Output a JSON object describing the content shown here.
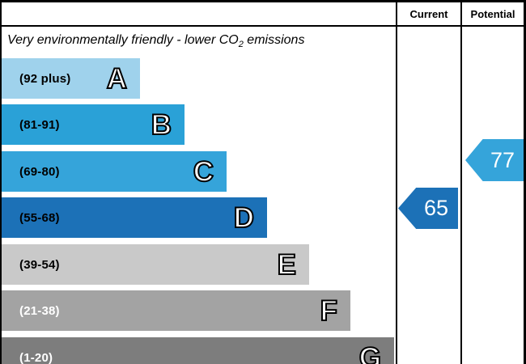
{
  "header": {
    "current_label": "Current",
    "potential_label": "Potential"
  },
  "title": {
    "prefix": "Very environmentally friendly - lower CO",
    "subscript": "2",
    "suffix": " emissions"
  },
  "bands": [
    {
      "letter": "A",
      "range": "(92 plus)",
      "color": "#9fd2ec",
      "range_color": "#000000",
      "width_css": "171px"
    },
    {
      "letter": "B",
      "range": "(81-91)",
      "color": "#2aa1d7",
      "range_color": "#000000",
      "width_css": "226px"
    },
    {
      "letter": "C",
      "range": "(69-80)",
      "color": "#35a4da",
      "range_color": "#000000",
      "width_css": "278px"
    },
    {
      "letter": "D",
      "range": "(55-68)",
      "color": "#1c71b7",
      "range_color": "#000000",
      "width_css": "328px"
    },
    {
      "letter": "E",
      "range": "(39-54)",
      "color": "#c9c9c9",
      "range_color": "#000000",
      "width_css": "380px"
    },
    {
      "letter": "F",
      "range": "(21-38)",
      "color": "#a3a3a3",
      "range_color": "#ffffff",
      "width_css": "431px"
    },
    {
      "letter": "G",
      "range": "(1-20)",
      "color": "#7d7d7d",
      "range_color": "#ffffff",
      "width_css": "485px"
    }
  ],
  "pointers": {
    "current": {
      "value": "65",
      "color": "#1c71b7"
    },
    "potential": {
      "value": "77",
      "color": "#35a4da"
    }
  },
  "chart_data": {
    "type": "bar",
    "title": "Very environmentally friendly - lower CO2 emissions",
    "columns": [
      "Current",
      "Potential"
    ],
    "categories": [
      "A (92 plus)",
      "B (81-91)",
      "C (69-80)",
      "D (55-68)",
      "E (39-54)",
      "F (21-38)",
      "G (1-20)"
    ],
    "band_colors": [
      "#9fd2ec",
      "#2aa1d7",
      "#35a4da",
      "#1c71b7",
      "#c9c9c9",
      "#a3a3a3",
      "#7d7d7d"
    ],
    "current": {
      "value": 65,
      "band": "D"
    },
    "potential": {
      "value": 77,
      "band": "C"
    },
    "legend_position": "none",
    "grid": false
  }
}
